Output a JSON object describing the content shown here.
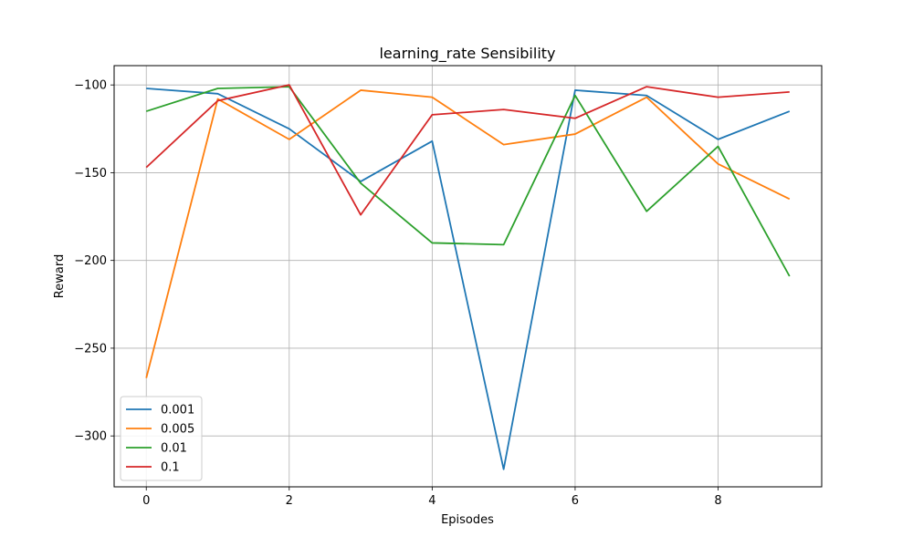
{
  "chart_data": {
    "type": "line",
    "title": "learning_rate Sensibility",
    "xlabel": "Episodes",
    "ylabel": "Reward",
    "x": [
      0,
      1,
      2,
      3,
      4,
      5,
      6,
      7,
      8,
      9
    ],
    "xlim": [
      -0.45,
      9.45
    ],
    "ylim": [
      -329,
      -89
    ],
    "xticks": [
      0,
      2,
      4,
      6,
      8
    ],
    "yticks": [
      -100,
      -150,
      -200,
      -250,
      -300
    ],
    "ytick_labels": [
      "−100",
      "−150",
      "−200",
      "−250",
      "−300"
    ],
    "grid": true,
    "legend_position": "lower-left",
    "series": [
      {
        "name": "0.001",
        "color": "#1f77b4",
        "values": [
          -102,
          -105,
          -125,
          -155,
          -132,
          -319,
          -103,
          -106,
          -131,
          -115
        ]
      },
      {
        "name": "0.005",
        "color": "#ff7f0e",
        "values": [
          -267,
          -108,
          -131,
          -103,
          -107,
          -134,
          -128,
          -107,
          -145,
          -165
        ]
      },
      {
        "name": "0.01",
        "color": "#2ca02c",
        "values": [
          -115,
          -102,
          -101,
          -156,
          -190,
          -191,
          -106,
          -172,
          -135,
          -209
        ]
      },
      {
        "name": "0.1",
        "color": "#d62728",
        "values": [
          -147,
          -109,
          -100,
          -174,
          -117,
          -114,
          -119,
          -101,
          -107,
          -104
        ]
      }
    ]
  }
}
